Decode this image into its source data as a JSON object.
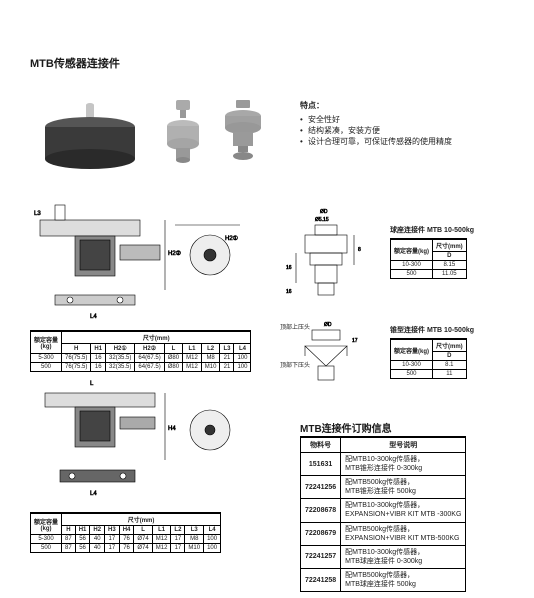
{
  "main_title": "MTB传感器连接件",
  "features": {
    "header": "特点：",
    "items": [
      "安全性好",
      "结构紧凑，安装方便",
      "设计合理可靠，可保证传感器的使用精度"
    ]
  },
  "ball_seat": {
    "title": "球座连接件 MTB 10-500kg",
    "col1": "额定容量(kg)",
    "col2": "尺寸(mm)",
    "sub": "D",
    "rows": [
      {
        "cap": "10-300",
        "d": "8.15"
      },
      {
        "cap": "500",
        "d": "11.05"
      }
    ]
  },
  "cone": {
    "title": "锥型连接件 MTB 10-500kg",
    "col1": "额定容量(kg)",
    "col2": "尺寸(mm)",
    "sub": "D",
    "rows": [
      {
        "cap": "10-300",
        "d": "8.1"
      },
      {
        "cap": "500",
        "d": "11"
      }
    ]
  },
  "dim_label_top": "顶部上压头",
  "dim_label_bot": "顶部下压头",
  "spec1": {
    "head_cap": "额定容量\n(kg)",
    "head_dim": "尺寸(mm)",
    "cols": [
      "H",
      "H1",
      "H2①",
      "H2②",
      "L",
      "L1",
      "L2",
      "L3",
      "L4"
    ],
    "rows": [
      [
        "5-300",
        "76(75.5)",
        "16",
        "32(35.5)",
        "64(67.5)",
        "Ø80",
        "M12",
        "M8",
        "21",
        "100"
      ],
      [
        "500",
        "76(75.5)",
        "16",
        "32(35.5)",
        "64(67.5)",
        "Ø80",
        "M12",
        "M10",
        "21",
        "100"
      ]
    ]
  },
  "spec2": {
    "head_cap": "额定容量\n(kg)",
    "head_dim": "尺寸(mm)",
    "cols": [
      "H",
      "H1",
      "H2",
      "H3",
      "H4",
      "L",
      "L1",
      "L2",
      "L3",
      "L4"
    ],
    "rows": [
      [
        "5-300",
        "87",
        "56",
        "40",
        "17",
        "76",
        "Ø74",
        "M12",
        "17",
        "M8",
        "100"
      ],
      [
        "500",
        "87",
        "56",
        "40",
        "17",
        "76",
        "Ø74",
        "M12",
        "17",
        "M10",
        "100"
      ]
    ]
  },
  "order": {
    "title": "MTB连接件订购信息",
    "col1": "物料号",
    "col2": "型号说明",
    "rows": [
      {
        "pn": "151631",
        "desc": "配MTB10-300kg传感器，\nMTB锥形连接件 0-300kg"
      },
      {
        "pn": "72241256",
        "desc": "配MTB500kg传感器，\nMTB锥形连接件 500kg"
      },
      {
        "pn": "72208678",
        "desc": "配MTB10-300kg传感器，\nEXPANSION+VIBR KIT MTB -300KG"
      },
      {
        "pn": "72208679",
        "desc": "配MTB500kg传感器，\nEXPANSION+VIBR KIT MTB-500KG"
      },
      {
        "pn": "72241257",
        "desc": "配MTB10-300kg传感器，\nMTB球座连接件 0-300kg"
      },
      {
        "pn": "72241258",
        "desc": "配MTB500kg传感器，\nMTB球座连接件 500kg"
      }
    ]
  }
}
